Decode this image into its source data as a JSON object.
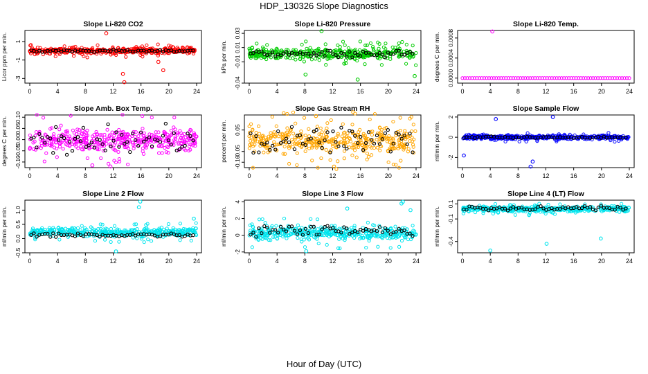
{
  "figure": {
    "title": "HDP_130326  Slope Diagnostics",
    "xlabel": "Hour of Day (UTC)"
  },
  "chart_data": [
    {
      "type": "scatter",
      "title": "Slope Li-820 CO2",
      "ylabel": "Licor ppm per min.",
      "color": "#ff0000",
      "xlim": [
        0,
        24
      ],
      "xticks": [
        "0",
        "4",
        "8",
        "12",
        "16",
        "20",
        "24"
      ],
      "ylim": [
        -3.5,
        2.2
      ],
      "yticks": [
        {
          "v": 1,
          "t": "1"
        },
        {
          "v": -1,
          "t": "-1"
        },
        {
          "v": -3,
          "t": "-3"
        }
      ],
      "band": [
        -0.45,
        0.45
      ],
      "black": [
        -0.15,
        0.15
      ],
      "outliers": [
        {
          "x": 11.0,
          "y": 1.9
        },
        {
          "x": 13.4,
          "y": -2.5
        },
        {
          "x": 13.6,
          "y": -3.4
        },
        {
          "x": 19.2,
          "y": -2.1
        },
        {
          "x": 18.5,
          "y": -1.2
        }
      ]
    },
    {
      "type": "scatter",
      "title": "Slope Li-820 Pressure",
      "ylabel": "kPa per min.",
      "color": "#00cc00",
      "xlim": [
        0,
        24
      ],
      "xticks": [
        "0",
        "4",
        "8",
        "12",
        "16",
        "20",
        "24"
      ],
      "ylim": [
        -0.04,
        0.034
      ],
      "yticks": [
        {
          "v": 0.03,
          "t": "0.03"
        },
        {
          "v": 0.01,
          "t": "0.01"
        },
        {
          "v": -0.01,
          "t": "-0.01"
        },
        {
          "v": -0.04,
          "t": "-0.04"
        }
      ],
      "band": [
        -0.01,
        0.012
      ],
      "black": [
        -0.004,
        0.006
      ],
      "outliers": [
        {
          "x": 10.4,
          "y": 0.033
        },
        {
          "x": 15.6,
          "y": -0.035
        },
        {
          "x": 23.8,
          "y": -0.03
        },
        {
          "x": 8.1,
          "y": -0.028
        }
      ]
    },
    {
      "type": "scatter",
      "title": "Slope Li-820 Temp.",
      "ylabel": "degrees C per min.",
      "color": "#ff00ff",
      "xlim": [
        0,
        24
      ],
      "xticks": [
        "0",
        "4",
        "8",
        "12",
        "16",
        "20",
        "24"
      ],
      "ylim": [
        -0.0001,
        0.00095
      ],
      "yticks": [
        {
          "v": 0.0008,
          "t": "0.0008"
        },
        {
          "v": 0.0004,
          "t": "0.0004"
        },
        {
          "v": 0.0,
          "t": "0.0000"
        }
      ],
      "band": [
        0,
        0
      ],
      "black": [
        0,
        0
      ],
      "outliers": [
        {
          "x": 4.3,
          "y": 0.00093
        }
      ],
      "flat": true
    },
    {
      "type": "scatter",
      "title": "Slope Amb. Box Temp.",
      "ylabel": "degrees C per min.",
      "color": "#ff00ff",
      "xlim": [
        0,
        24
      ],
      "xticks": [
        "0",
        "4",
        "8",
        "12",
        "16",
        "20",
        "24"
      ],
      "ylim": [
        -0.125,
        0.11
      ],
      "yticks": [
        {
          "v": 0.1,
          "t": "0.10"
        },
        {
          "v": 0.05,
          "t": "0.05"
        },
        {
          "v": 0.0,
          "t": "0.00"
        },
        {
          "v": -0.05,
          "t": "-0.05"
        },
        {
          "v": -0.1,
          "t": "-0.10"
        }
      ],
      "band": [
        -0.07,
        0.07
      ],
      "black": [
        -0.08,
        0.08
      ],
      "outliers": [
        {
          "x": 9.0,
          "y": -0.115
        },
        {
          "x": 11.6,
          "y": -0.12
        }
      ]
    },
    {
      "type": "scatter",
      "title": "Slope Gas Stream RH",
      "ylabel": "percent per min.",
      "color": "#ffa500",
      "xlim": [
        0,
        24
      ],
      "xticks": [
        "0",
        "4",
        "8",
        "12",
        "16",
        "20",
        "24"
      ],
      "ylim": [
        -0.125,
        0.12
      ],
      "yticks": [
        {
          "v": 0.05,
          "t": "0.05"
        },
        {
          "v": -0.05,
          "t": "-0.05"
        },
        {
          "v": -0.1,
          "t": "-0.10"
        }
      ],
      "band": [
        -0.085,
        0.085
      ],
      "black": [
        -0.07,
        0.07
      ],
      "outliers": [
        {
          "x": 9.6,
          "y": 0.115
        },
        {
          "x": 12.2,
          "y": -0.12
        }
      ]
    },
    {
      "type": "scatter",
      "title": "Slope Sample Flow",
      "ylabel": "ml/min per min.",
      "color": "#0000ff",
      "xlim": [
        0,
        24
      ],
      "xticks": [
        "0",
        "4",
        "8",
        "12",
        "16",
        "20",
        "24"
      ],
      "ylim": [
        -3.0,
        2.2
      ],
      "yticks": [
        {
          "v": 2,
          "t": "2"
        },
        {
          "v": 0,
          "t": "0"
        },
        {
          "v": -2,
          "t": "-2"
        }
      ],
      "band": [
        -0.3,
        0.3
      ],
      "black": [
        -0.1,
        0.1
      ],
      "outliers": [
        {
          "x": 9.8,
          "y": -2.9
        },
        {
          "x": 10.1,
          "y": -2.4
        },
        {
          "x": 13.0,
          "y": 2.0
        },
        {
          "x": 4.8,
          "y": 1.8
        },
        {
          "x": 0.2,
          "y": -1.8
        }
      ]
    },
    {
      "type": "scatter",
      "title": "Slope Line 2 Flow",
      "ylabel": "ml/min per min.",
      "color": "#00e5ee",
      "xlim": [
        0,
        24
      ],
      "xticks": [
        "0",
        "4",
        "8",
        "12",
        "16",
        "20",
        "24"
      ],
      "ylim": [
        -0.5,
        1.35
      ],
      "yticks": [
        {
          "v": 1.0,
          "t": "1.0"
        },
        {
          "v": 0.5,
          "t": "0.5"
        },
        {
          "v": 0.0,
          "t": "0.0"
        },
        {
          "v": -0.5,
          "t": "-0.5"
        }
      ],
      "band": [
        0.0,
        0.45
      ],
      "black": [
        0.05,
        0.2
      ],
      "outliers": [
        {
          "x": 15.9,
          "y": 1.3
        },
        {
          "x": 15.7,
          "y": 1.1
        },
        {
          "x": 12.4,
          "y": -0.45
        },
        {
          "x": 23.6,
          "y": 0.7
        }
      ]
    },
    {
      "type": "scatter",
      "title": "Slope Line 3 Flow",
      "ylabel": "ml/min per min.",
      "color": "#00e5ee",
      "xlim": [
        0,
        24
      ],
      "xticks": [
        "0",
        "4",
        "8",
        "12",
        "16",
        "20",
        "24"
      ],
      "ylim": [
        -2.1,
        4.2
      ],
      "yticks": [
        {
          "v": 4,
          "t": "4"
        },
        {
          "v": 2,
          "t": "2"
        },
        {
          "v": 0,
          "t": "0"
        },
        {
          "v": -2,
          "t": "-2"
        }
      ],
      "band": [
        -0.9,
        1.4
      ],
      "black": [
        -0.3,
        1.3
      ],
      "outliers": [
        {
          "x": 22.1,
          "y": 4.0
        },
        {
          "x": 21.9,
          "y": 3.8
        },
        {
          "x": 23.2,
          "y": 3.0
        },
        {
          "x": 14.1,
          "y": 3.2
        },
        {
          "x": 8.2,
          "y": -1.9
        }
      ]
    },
    {
      "type": "scatter",
      "title": "Slope Line 4 (LT) Flow",
      "ylabel": "ml/min per min.",
      "color": "#00e5ee",
      "xlim": [
        0,
        24
      ],
      "xticks": [
        "0",
        "4",
        "8",
        "12",
        "16",
        "20",
        "24"
      ],
      "ylim": [
        -0.55,
        0.15
      ],
      "yticks": [
        {
          "v": 0.1,
          "t": "0.1"
        },
        {
          "v": -0.1,
          "t": "-0.1"
        },
        {
          "v": -0.4,
          "t": "-0.4"
        }
      ],
      "band": [
        -0.02,
        0.09
      ],
      "black": [
        0.0,
        0.08
      ],
      "outliers": [
        {
          "x": 4.0,
          "y": -0.52
        },
        {
          "x": 12.1,
          "y": -0.43
        },
        {
          "x": 19.9,
          "y": -0.36
        }
      ]
    }
  ]
}
